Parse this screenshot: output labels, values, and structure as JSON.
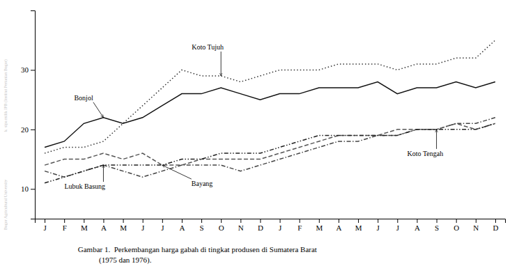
{
  "chart_data": {
    "type": "line",
    "categories": [
      "J",
      "F",
      "M",
      "A",
      "M",
      "J",
      "J",
      "A",
      "S",
      "O",
      "N",
      "D",
      "J",
      "F",
      "M",
      "A",
      "M",
      "J",
      "J",
      "A",
      "S",
      "O",
      "N",
      "D"
    ],
    "ylim": [
      5,
      40
    ],
    "yticks": [
      10,
      20,
      30
    ],
    "grid": false,
    "series": [
      {
        "name": "Koto Tujuh",
        "color": "#333333",
        "line_style": "dotted",
        "values": [
          16,
          17,
          17,
          18,
          21,
          24,
          27,
          30,
          29,
          29,
          28,
          29,
          30,
          30,
          30,
          31,
          31,
          31,
          30,
          31,
          31,
          32,
          32,
          35
        ]
      },
      {
        "name": "Bonjol",
        "color": "#111111",
        "line_style": "solid",
        "values": [
          17,
          18,
          21,
          22,
          21,
          22,
          24,
          26,
          26,
          27,
          26,
          25,
          26,
          26,
          27,
          27,
          27,
          28,
          26,
          27,
          27,
          28,
          27,
          28
        ]
      },
      {
        "name": "Lubuk Basung",
        "color": "#444444",
        "line_style": "dashdot",
        "values": [
          13,
          12,
          13,
          14,
          13,
          12,
          13,
          14,
          14,
          14,
          13,
          14,
          15,
          16,
          17,
          18,
          18,
          19,
          19,
          20,
          20,
          21,
          21,
          22
        ]
      },
      {
        "name": "Bayang",
        "color": "#555555",
        "line_style": "dashed",
        "values": [
          14,
          15,
          15,
          16,
          15,
          16,
          14,
          14,
          15,
          15,
          15,
          15,
          16,
          17,
          18,
          19,
          19,
          19,
          20,
          20,
          20,
          21,
          20,
          21
        ]
      },
      {
        "name": "Koto Tengah",
        "color": "#222222",
        "line_style": "dashdotdotted",
        "values": [
          11,
          12,
          13,
          14,
          14,
          14,
          14,
          15,
          15,
          16,
          16,
          16,
          17,
          18,
          19,
          19,
          19,
          19,
          19,
          20,
          20,
          20,
          20,
          21
        ]
      }
    ],
    "annotations": [
      {
        "text": "Koto Tujuh",
        "x": 9,
        "y": 29
      },
      {
        "text": "Bonjol",
        "x": 3,
        "y": 22
      },
      {
        "text": "Lubuk Basung",
        "x": 3,
        "y": 14
      },
      {
        "text": "Bayang",
        "x": 6,
        "y": 14
      },
      {
        "text": "Koto Tengah",
        "x": 20,
        "y": 20
      }
    ],
    "caption": [
      "Gambar 1.  Perkembangan harga gabah di tingkat produsen di Sumatera Barat",
      "           (1975 dan 1976)."
    ],
    "watermarks": [
      "k  sipa milik IPB (Institut Pertanian Bogor)",
      "Bogor Agricultural University"
    ]
  }
}
